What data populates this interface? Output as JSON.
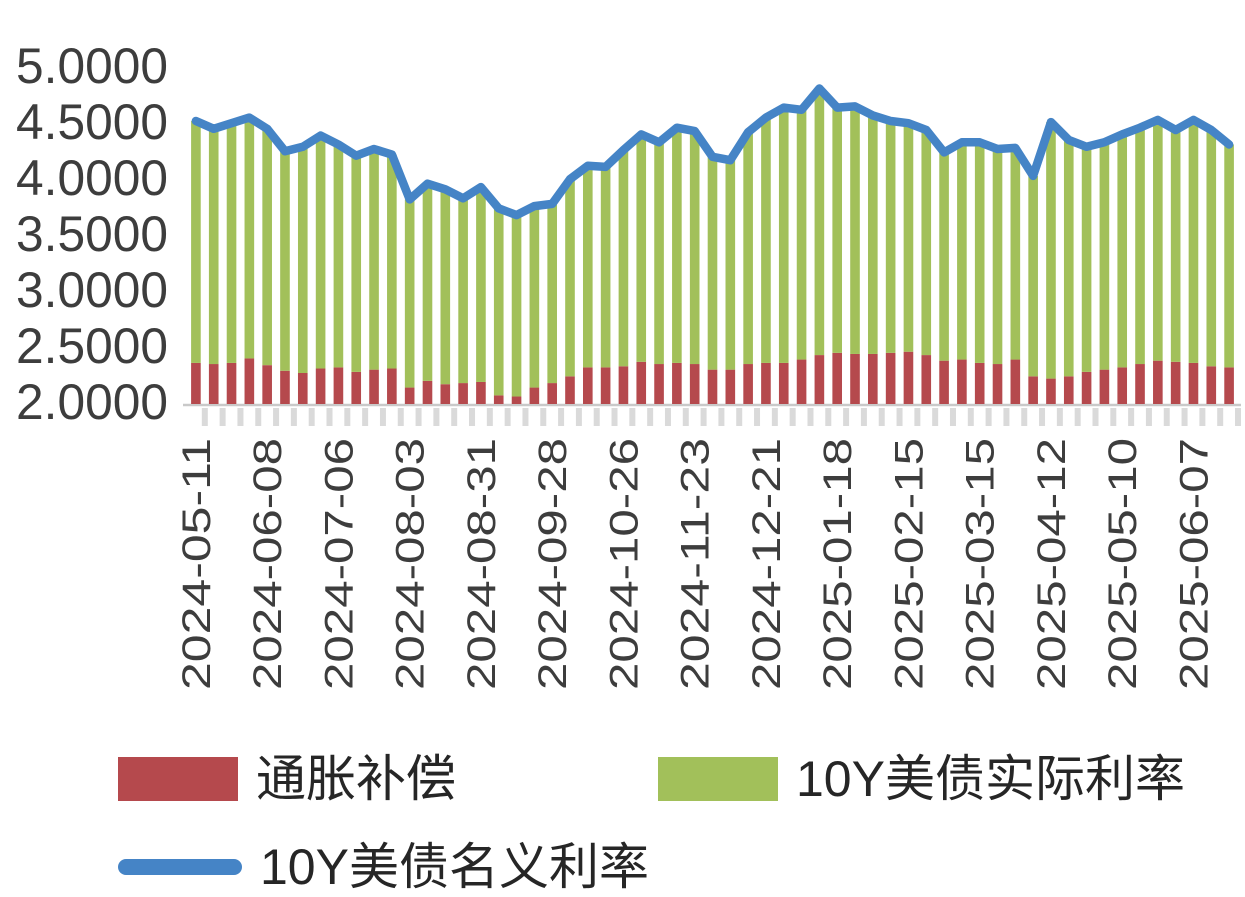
{
  "chart_data": {
    "type": "bar",
    "subtype": "stacked-columns-with-line-overlay",
    "title": "",
    "xlabel": "",
    "ylabel": "",
    "grid": false,
    "legend_position": "bottom-left",
    "ylim": [
      2.0,
      5.0
    ],
    "y_ticks": [
      "2.0000",
      "2.5000",
      "3.0000",
      "3.5000",
      "4.0000",
      "4.5000",
      "5.0000"
    ],
    "x_tick_indices": [
      0,
      4,
      8,
      12,
      16,
      20,
      24,
      28,
      32,
      36,
      40,
      44,
      48,
      52,
      56
    ],
    "x": [
      "2024-05-11",
      "2024-05-18",
      "2024-05-25",
      "2024-06-01",
      "2024-06-08",
      "2024-06-15",
      "2024-06-22",
      "2024-06-29",
      "2024-07-06",
      "2024-07-13",
      "2024-07-20",
      "2024-07-27",
      "2024-08-03",
      "2024-08-10",
      "2024-08-17",
      "2024-08-24",
      "2024-08-31",
      "2024-09-07",
      "2024-09-14",
      "2024-09-21",
      "2024-09-28",
      "2024-10-05",
      "2024-10-12",
      "2024-10-19",
      "2024-10-26",
      "2024-11-02",
      "2024-11-09",
      "2024-11-16",
      "2024-11-23",
      "2024-11-30",
      "2024-12-07",
      "2024-12-14",
      "2024-12-21",
      "2024-12-28",
      "2025-01-04",
      "2025-01-11",
      "2025-01-18",
      "2025-01-25",
      "2025-02-01",
      "2025-02-08",
      "2025-02-15",
      "2025-02-22",
      "2025-03-01",
      "2025-03-08",
      "2025-03-15",
      "2025-03-22",
      "2025-03-29",
      "2025-04-05",
      "2025-04-12",
      "2025-04-19",
      "2025-04-26",
      "2025-05-03",
      "2025-05-10",
      "2025-05-17",
      "2025-05-24",
      "2025-05-31",
      "2025-06-07",
      "2025-06-14",
      "2025-06-21"
    ],
    "series": [
      {
        "name": "通胀补偿",
        "type": "bar-stack-bottom",
        "color": "#b5494d",
        "values": [
          2.34,
          2.33,
          2.34,
          2.38,
          2.32,
          2.27,
          2.25,
          2.29,
          2.3,
          2.26,
          2.28,
          2.29,
          2.12,
          2.18,
          2.15,
          2.16,
          2.17,
          2.05,
          2.04,
          2.12,
          2.16,
          2.22,
          2.3,
          2.3,
          2.31,
          2.35,
          2.33,
          2.34,
          2.33,
          2.28,
          2.28,
          2.33,
          2.34,
          2.34,
          2.37,
          2.41,
          2.43,
          2.42,
          2.42,
          2.43,
          2.44,
          2.41,
          2.36,
          2.37,
          2.34,
          2.33,
          2.37,
          2.22,
          2.2,
          2.22,
          2.26,
          2.28,
          2.3,
          2.33,
          2.36,
          2.35,
          2.34,
          2.31,
          2.3
        ]
      },
      {
        "name": "10Y美债实际利率",
        "type": "bar-stack-top",
        "color": "#a2c05a",
        "values": [
          2.16,
          2.1,
          2.14,
          2.15,
          2.11,
          1.96,
          2.02,
          2.08,
          1.99,
          1.93,
          1.97,
          1.91,
          1.68,
          1.76,
          1.74,
          1.65,
          1.74,
          1.67,
          1.62,
          1.62,
          1.6,
          1.76,
          1.8,
          1.79,
          1.93,
          2.03,
          1.98,
          2.1,
          2.08,
          1.9,
          1.87,
          2.07,
          2.19,
          2.28,
          2.23,
          2.38,
          2.19,
          2.21,
          2.13,
          2.07,
          2.04,
          2.01,
          1.86,
          1.94,
          1.97,
          1.92,
          1.89,
          1.79,
          2.29,
          2.11,
          2.01,
          2.03,
          2.08,
          2.11,
          2.15,
          2.07,
          2.17,
          2.11,
          1.99
        ]
      },
      {
        "name": "10Y美债名义利率",
        "type": "line",
        "color": "#4584c6",
        "values": [
          4.5,
          4.43,
          4.48,
          4.53,
          4.43,
          4.23,
          4.27,
          4.37,
          4.29,
          4.19,
          4.25,
          4.2,
          3.8,
          3.94,
          3.89,
          3.81,
          3.91,
          3.72,
          3.66,
          3.74,
          3.76,
          3.98,
          4.1,
          4.09,
          4.24,
          4.38,
          4.31,
          4.44,
          4.41,
          4.18,
          4.15,
          4.4,
          4.53,
          4.62,
          4.6,
          4.79,
          4.62,
          4.63,
          4.55,
          4.5,
          4.48,
          4.42,
          4.22,
          4.31,
          4.31,
          4.25,
          4.26,
          4.01,
          4.49,
          4.33,
          4.27,
          4.31,
          4.38,
          4.44,
          4.51,
          4.42,
          4.51,
          4.42,
          4.29
        ]
      }
    ],
    "axis_colors": {
      "tick_label": "#3d3d3d",
      "axis_line": "#c9c9c9",
      "tick_mark": "#dadada"
    }
  }
}
